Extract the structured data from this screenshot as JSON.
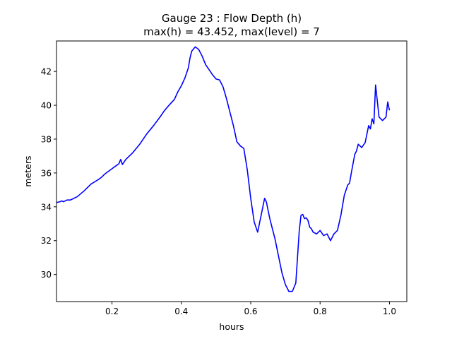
{
  "chart_data": {
    "type": "line",
    "title_line1": "Gauge 23 : Flow Depth (h)",
    "title_line2": "max(h) =  43.452,    max(level) = 7",
    "xlabel": "hours",
    "ylabel": "meters",
    "xlim": [
      0.04,
      1.05
    ],
    "ylim": [
      28.4,
      43.8
    ],
    "xticks": [
      0.2,
      0.4,
      0.6,
      0.8,
      1.0
    ],
    "xtick_labels": [
      "0.2",
      "0.4",
      "0.6",
      "0.8",
      "1.0"
    ],
    "yticks": [
      30,
      32,
      34,
      36,
      38,
      40,
      42
    ],
    "ytick_labels": [
      "30",
      "32",
      "34",
      "36",
      "38",
      "40",
      "42"
    ],
    "grid": false,
    "series": [
      {
        "color": "#0000ff",
        "x": [
          0.04,
          0.05,
          0.055,
          0.06,
          0.065,
          0.07,
          0.08,
          0.1,
          0.12,
          0.14,
          0.16,
          0.17,
          0.18,
          0.19,
          0.2,
          0.21,
          0.22,
          0.225,
          0.23,
          0.24,
          0.26,
          0.28,
          0.3,
          0.32,
          0.34,
          0.35,
          0.36,
          0.38,
          0.39,
          0.4,
          0.41,
          0.42,
          0.425,
          0.43,
          0.44,
          0.45,
          0.46,
          0.47,
          0.48,
          0.49,
          0.5,
          0.51,
          0.52,
          0.53,
          0.54,
          0.55,
          0.56,
          0.57,
          0.58,
          0.59,
          0.6,
          0.61,
          0.62,
          0.63,
          0.64,
          0.645,
          0.65,
          0.655,
          0.66,
          0.665,
          0.67,
          0.68,
          0.69,
          0.7,
          0.71,
          0.72,
          0.73,
          0.74,
          0.745,
          0.75,
          0.755,
          0.76,
          0.765,
          0.77,
          0.775,
          0.78,
          0.79,
          0.8,
          0.81,
          0.82,
          0.83,
          0.84,
          0.85,
          0.86,
          0.87,
          0.875,
          0.88,
          0.885,
          0.89,
          0.9,
          0.905,
          0.91,
          0.915,
          0.92,
          0.93,
          0.935,
          0.94,
          0.945,
          0.95,
          0.955,
          0.96,
          0.97,
          0.98,
          0.99,
          0.995,
          1.0
        ],
        "y": [
          34.25,
          34.3,
          34.35,
          34.3,
          34.35,
          34.4,
          34.4,
          34.6,
          34.95,
          35.35,
          35.6,
          35.75,
          35.95,
          36.1,
          36.25,
          36.4,
          36.55,
          36.8,
          36.5,
          36.8,
          37.2,
          37.7,
          38.3,
          38.8,
          39.35,
          39.65,
          39.9,
          40.35,
          40.8,
          41.15,
          41.6,
          42.2,
          42.8,
          43.2,
          43.45,
          43.3,
          42.9,
          42.4,
          42.1,
          41.8,
          41.55,
          41.5,
          41.1,
          40.4,
          39.6,
          38.8,
          37.85,
          37.6,
          37.45,
          36.2,
          34.5,
          33.1,
          32.5,
          33.5,
          34.5,
          34.3,
          33.8,
          33.3,
          32.9,
          32.5,
          32.1,
          31.1,
          30.1,
          29.4,
          29.0,
          29.0,
          29.5,
          32.6,
          33.5,
          33.55,
          33.3,
          33.35,
          33.2,
          32.8,
          32.7,
          32.5,
          32.4,
          32.6,
          32.3,
          32.4,
          32.0,
          32.4,
          32.6,
          33.5,
          34.7,
          35.0,
          35.3,
          35.4,
          36.0,
          37.1,
          37.3,
          37.7,
          37.6,
          37.5,
          37.8,
          38.3,
          38.8,
          38.6,
          39.2,
          38.9,
          41.2,
          39.3,
          39.1,
          39.3,
          40.2,
          39.7
        ]
      }
    ]
  }
}
